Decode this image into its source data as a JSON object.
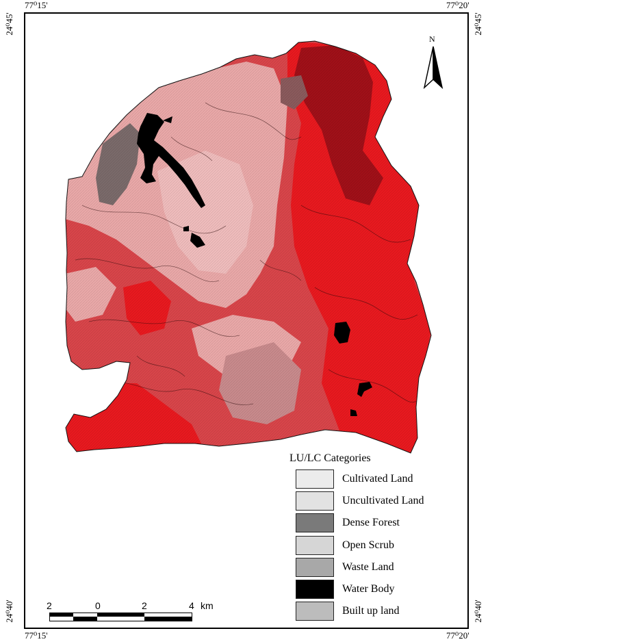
{
  "coords": {
    "top_left": "77⁰15'",
    "top_right": "77⁰20'",
    "bottom_left": "77⁰15'",
    "bottom_right": "77⁰20'",
    "left_top": "24⁰45'",
    "left_bottom": "24⁰40'",
    "right_top": "24⁰45'",
    "right_bottom": "24⁰40'"
  },
  "north_label": "N",
  "legend": {
    "title": "LU/LC Categories",
    "items": [
      {
        "label": "Cultivated  Land",
        "color": "#ececec"
      },
      {
        "label": "Uncultivated Land",
        "color": "#e2e2e2"
      },
      {
        "label": "Dense Forest",
        "color": "#7a7a7a"
      },
      {
        "label": "Open Scrub",
        "color": "#d6d6d6"
      },
      {
        "label": "Waste Land",
        "color": "#a8a8a8"
      },
      {
        "label": "Water Body",
        "color": "#000000"
      },
      {
        "label": "Built up land",
        "color": "#bcbcbc"
      }
    ]
  },
  "scale_bar": {
    "labels": [
      "2",
      "0",
      "2",
      "4"
    ],
    "unit": "km"
  },
  "colors": {
    "bright_red": "#e8191f",
    "light_pink": "#e9a8a8",
    "medium_red": "#d8454a",
    "dark_red": "#a01018"
  }
}
